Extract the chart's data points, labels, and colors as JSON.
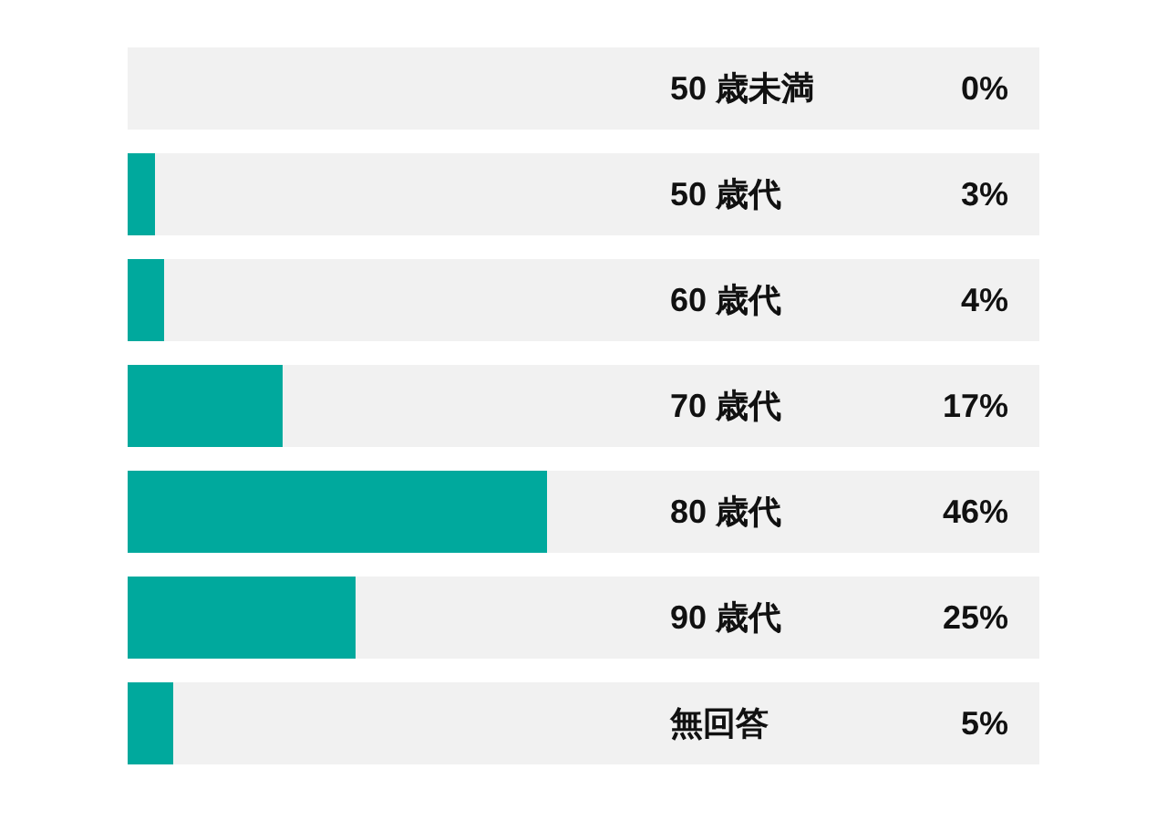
{
  "chart_data": {
    "type": "bar",
    "orientation": "horizontal",
    "categories": [
      "50 歳未満",
      "50 歳代",
      "60 歳代",
      "70 歳代",
      "80 歳代",
      "90 歳代",
      "無回答"
    ],
    "values": [
      0,
      3,
      4,
      17,
      46,
      25,
      5
    ],
    "value_labels": [
      "0%",
      "3%",
      "4%",
      "17%",
      "46%",
      "25%",
      "5%"
    ],
    "color": "#00a99d",
    "xlim": [
      0,
      100
    ],
    "bands": [
      {
        "axis": "x",
        "from": 0,
        "to": 100,
        "color": "#f1f1f1"
      }
    ],
    "tick_labels": "y"
  }
}
